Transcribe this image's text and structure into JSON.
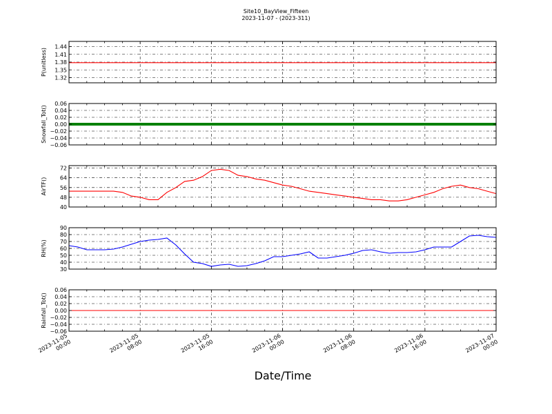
{
  "figure": {
    "title_line1": "Site10_BayView_Fifteen",
    "title_line2": "2023-11-07 - (2023-311)",
    "xlabel": "Date/Time"
  },
  "chart_data": [
    {
      "type": "line",
      "ylabel": "P(unitless)",
      "ylim": [
        1.3,
        1.46
      ],
      "yticks": [
        "1.44",
        "1.41",
        "1.38",
        "1.35",
        "1.32"
      ],
      "ytick_values": [
        1.44,
        1.41,
        1.38,
        1.35,
        1.32
      ],
      "color": "#ff0000",
      "marker": false,
      "grid": true,
      "x": [
        "2023-11-05 00:00",
        "2023-11-07 00:00"
      ],
      "series": [
        {
          "values": [
            1.378,
            1.378
          ]
        }
      ]
    },
    {
      "type": "line",
      "ylabel": "Snowfall_Tot()",
      "ylim": [
        -0.06,
        0.06
      ],
      "yticks": [
        "0.06",
        "0.04",
        "0.02",
        "0.00",
        "−0.02",
        "−0.04",
        "−0.06"
      ],
      "ytick_values": [
        0.06,
        0.04,
        0.02,
        0.0,
        -0.02,
        -0.04,
        -0.06
      ],
      "color": "#008000",
      "marker": true,
      "grid": true,
      "x": [
        "2023-11-05 00:00",
        "2023-11-07 00:00"
      ],
      "series": [
        {
          "values": [
            0.0,
            0.0
          ]
        }
      ]
    },
    {
      "type": "line",
      "ylabel": "AirTF()",
      "ylim": [
        40,
        74
      ],
      "yticks": [
        "72",
        "64",
        "56",
        "48",
        "40"
      ],
      "ytick_values": [
        72,
        64,
        56,
        48,
        40
      ],
      "color": "#ff0000",
      "marker": false,
      "grid": true,
      "x": [
        "2023-11-05 00:00",
        "2023-11-05 01:00",
        "2023-11-05 02:00",
        "2023-11-05 03:00",
        "2023-11-05 04:00",
        "2023-11-05 05:00",
        "2023-11-05 06:00",
        "2023-11-05 07:00",
        "2023-11-05 08:00",
        "2023-11-05 09:00",
        "2023-11-05 10:00",
        "2023-11-05 11:00",
        "2023-11-05 12:00",
        "2023-11-05 13:00",
        "2023-11-05 14:00",
        "2023-11-05 15:00",
        "2023-11-05 16:00",
        "2023-11-05 17:00",
        "2023-11-05 18:00",
        "2023-11-05 19:00",
        "2023-11-05 20:00",
        "2023-11-05 21:00",
        "2023-11-05 22:00",
        "2023-11-05 23:00",
        "2023-11-06 00:00",
        "2023-11-06 01:00",
        "2023-11-06 02:00",
        "2023-11-06 03:00",
        "2023-11-06 04:00",
        "2023-11-06 05:00",
        "2023-11-06 06:00",
        "2023-11-06 07:00",
        "2023-11-06 08:00",
        "2023-11-06 09:00",
        "2023-11-06 10:00",
        "2023-11-06 11:00",
        "2023-11-06 12:00",
        "2023-11-06 13:00",
        "2023-11-06 14:00",
        "2023-11-06 15:00",
        "2023-11-06 16:00",
        "2023-11-06 17:00",
        "2023-11-06 18:00",
        "2023-11-06 19:00",
        "2023-11-06 20:00",
        "2023-11-06 21:00",
        "2023-11-06 22:00",
        "2023-11-06 23:00",
        "2023-11-07 00:00"
      ],
      "series": [
        {
          "values": [
            53,
            53,
            53,
            53,
            53,
            53,
            52,
            49,
            48,
            46,
            46,
            52,
            56,
            61,
            62,
            65,
            70,
            71,
            70,
            66,
            65,
            63,
            62,
            60,
            58,
            57,
            55,
            53,
            52,
            51,
            50,
            49,
            48,
            47,
            46,
            46,
            45,
            45,
            46,
            48,
            50,
            52,
            55,
            57,
            58,
            56,
            55,
            53,
            51
          ]
        }
      ]
    },
    {
      "type": "line",
      "ylabel": "RH(%)",
      "ylim": [
        30,
        90
      ],
      "yticks": [
        "90",
        "80",
        "70",
        "60",
        "50",
        "40",
        "30"
      ],
      "ytick_values": [
        90,
        80,
        70,
        60,
        50,
        40,
        30
      ],
      "color": "#0000ff",
      "marker": false,
      "grid": true,
      "x": [
        "2023-11-05 00:00",
        "2023-11-05 01:00",
        "2023-11-05 02:00",
        "2023-11-05 03:00",
        "2023-11-05 04:00",
        "2023-11-05 05:00",
        "2023-11-05 06:00",
        "2023-11-05 07:00",
        "2023-11-05 08:00",
        "2023-11-05 09:00",
        "2023-11-05 10:00",
        "2023-11-05 11:00",
        "2023-11-05 12:00",
        "2023-11-05 13:00",
        "2023-11-05 14:00",
        "2023-11-05 15:00",
        "2023-11-05 16:00",
        "2023-11-05 17:00",
        "2023-11-05 18:00",
        "2023-11-05 19:00",
        "2023-11-05 20:00",
        "2023-11-05 21:00",
        "2023-11-05 22:00",
        "2023-11-05 23:00",
        "2023-11-06 00:00",
        "2023-11-06 01:00",
        "2023-11-06 02:00",
        "2023-11-06 03:00",
        "2023-11-06 04:00",
        "2023-11-06 05:00",
        "2023-11-06 06:00",
        "2023-11-06 07:00",
        "2023-11-06 08:00",
        "2023-11-06 09:00",
        "2023-11-06 10:00",
        "2023-11-06 11:00",
        "2023-11-06 12:00",
        "2023-11-06 13:00",
        "2023-11-06 14:00",
        "2023-11-06 15:00",
        "2023-11-06 16:00",
        "2023-11-06 17:00",
        "2023-11-06 18:00",
        "2023-11-06 19:00",
        "2023-11-06 20:00",
        "2023-11-06 21:00",
        "2023-11-06 22:00",
        "2023-11-06 23:00",
        "2023-11-07 00:00"
      ],
      "series": [
        {
          "values": [
            64,
            62,
            58,
            58,
            58,
            59,
            62,
            66,
            70,
            72,
            73,
            75,
            65,
            52,
            40,
            38,
            34,
            36,
            37,
            34,
            35,
            38,
            42,
            48,
            48,
            50,
            52,
            55,
            46,
            46,
            48,
            50,
            53,
            57,
            58,
            55,
            53,
            54,
            54,
            55,
            58,
            62,
            62,
            62,
            70,
            78,
            79,
            77,
            76
          ]
        }
      ]
    },
    {
      "type": "line",
      "ylabel": "Rainfall_Tot()",
      "ylim": [
        -0.06,
        0.06
      ],
      "yticks": [
        "0.06",
        "0.04",
        "0.02",
        "0.00",
        "−0.02",
        "−0.04",
        "−0.06"
      ],
      "ytick_values": [
        0.06,
        0.04,
        0.02,
        0.0,
        -0.02,
        -0.04,
        -0.06
      ],
      "color": "#ff0000",
      "marker": false,
      "grid": true,
      "x": [
        "2023-11-05 00:00",
        "2023-11-07 00:00"
      ],
      "series": [
        {
          "values": [
            0.0,
            0.0
          ]
        }
      ]
    }
  ],
  "xaxis": {
    "range": [
      "2023-11-05 00:00",
      "2023-11-07 00:00"
    ],
    "ticks": [
      {
        "line1": "2023-11-05",
        "line2": "00:00"
      },
      {
        "line1": "2023-11-05",
        "line2": "08:00"
      },
      {
        "line1": "2023-11-05",
        "line2": "16:00"
      },
      {
        "line1": "2023-11-06",
        "line2": "00:00"
      },
      {
        "line1": "2023-11-06",
        "line2": "08:00"
      },
      {
        "line1": "2023-11-06",
        "line2": "16:00"
      },
      {
        "line1": "2023-11-07",
        "line2": "00:00"
      }
    ]
  }
}
